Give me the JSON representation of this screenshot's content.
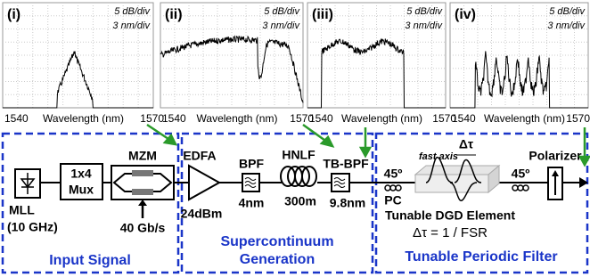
{
  "panels": [
    {
      "label": "(i)",
      "y_scale": "5 dB/div",
      "x_scale": "3 nm/div",
      "x_start": "1540",
      "x_label": "Wavelength (nm)",
      "x_end": "1570"
    },
    {
      "label": "(ii)",
      "y_scale": "5 dB/div",
      "x_scale": "3 nm/div",
      "x_start": "1540",
      "x_label": "Wavelength (nm)",
      "x_end": "1570"
    },
    {
      "label": "(iii)",
      "y_scale": "5 dB/div",
      "x_scale": "3 nm/div",
      "x_start": "1540",
      "x_label": "Wavelength (nm)",
      "x_end": "1570"
    },
    {
      "label": "(iv)",
      "y_scale": "5 dB/div",
      "x_scale": "3 nm/div",
      "x_start": "1540",
      "x_label": "Wavelength (nm)",
      "x_end": "1570"
    }
  ],
  "sections": {
    "input": "Input Signal",
    "supercontinuum": [
      "Supercontinuum",
      "Generation"
    ],
    "filter": "Tunable Periodic Filter"
  },
  "components": {
    "mll": "MLL",
    "mll_rate": "(10 GHz)",
    "mux": [
      "1x4",
      "Mux"
    ],
    "mzm": "MZM",
    "mzm_rate": "40 Gb/s",
    "edfa": "EDFA",
    "edfa_power": "24dBm",
    "bpf": "BPF",
    "bpf_bw": "4nm",
    "hnlf": "HNLF",
    "hnlf_len": "300m",
    "tbbpf": "TB-BPF",
    "tbbpf_bw": "9.8nm",
    "pc_angle_1": "45º",
    "pc": "PC",
    "fast_axis": "fast axis",
    "delta_tau": "Δτ",
    "dgd": "Tunable DGD Element",
    "dgd_eq": "Δτ = 1 / FSR",
    "pc_angle_2": "45º",
    "polarizer": "Polarizer"
  }
}
